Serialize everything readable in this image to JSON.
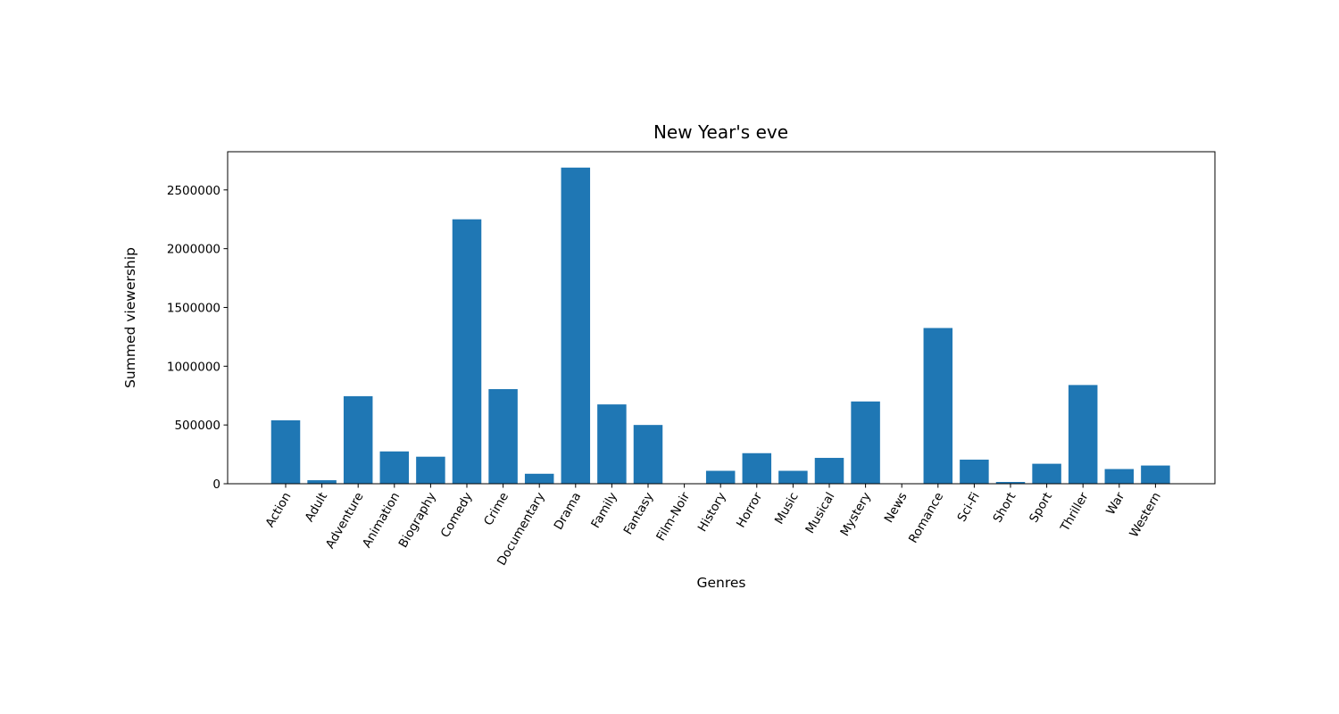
{
  "chart_data": {
    "type": "bar",
    "title": "New Year's eve",
    "xlabel": "Genres",
    "ylabel": "Summed viewership",
    "ylim": [
      0,
      2825000
    ],
    "yticks": [
      "0",
      "500000",
      "1000000",
      "1500000",
      "2000000",
      "2500000"
    ],
    "grid": false,
    "bar_color": "#1f77b4",
    "categories": [
      "Action",
      "Adult",
      "Adventure",
      "Animation",
      "Biography",
      "Comedy",
      "Crime",
      "Documentary",
      "Drama",
      "Family",
      "Fantasy",
      "Film-Noir",
      "History",
      "Horror",
      "Music",
      "Musical",
      "Mystery",
      "News",
      "Romance",
      "Sci-Fi",
      "Short",
      "Sport",
      "Thriller",
      "War",
      "Western"
    ],
    "values": [
      540000,
      30000,
      745000,
      275000,
      230000,
      2250000,
      805000,
      85000,
      2690000,
      675000,
      500000,
      0,
      110000,
      260000,
      110000,
      220000,
      700000,
      0,
      1325000,
      205000,
      15000,
      170000,
      840000,
      125000,
      155000
    ]
  }
}
